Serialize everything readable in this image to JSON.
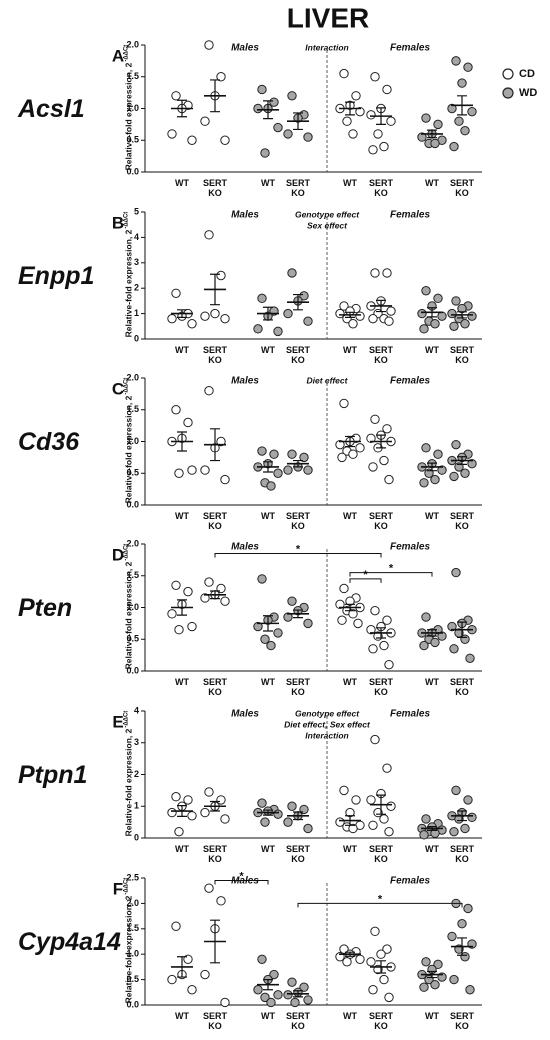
{
  "title": "LIVER",
  "legend": [
    {
      "name": "CD",
      "color": "#ffffff"
    },
    {
      "name": "WD",
      "color": "#a6a6a6"
    }
  ],
  "chart_data": [
    {
      "type": "dot",
      "letter": "A",
      "gene": "Acsl1",
      "ylabel": "Relative-fold expression, 2",
      "ylabel_sup": "-ΔΔCt",
      "sexes": [
        "Males",
        "Females"
      ],
      "annotations": [
        "Interaction"
      ],
      "ylim": [
        0,
        2
      ],
      "yticks": [
        {
          "value": 0,
          "label": "0.0"
        },
        0.5,
        {
          "value": 1,
          "label": "1.0"
        },
        1.5,
        {
          "value": 2,
          "label": "2.0"
        }
      ],
      "groups": [
        {
          "label": "WT",
          "series": 0,
          "values": [
            1.2,
            1.05,
            1.0,
            0.6,
            0.5
          ],
          "mean": 1.0,
          "sem": 0.13
        },
        {
          "label": "SERT KO",
          "series": 0,
          "values": [
            2.0,
            1.5,
            1.2,
            0.8,
            0.5
          ],
          "mean": 1.2,
          "sem": 0.25
        },
        {
          "label": "WT",
          "series": 1,
          "values": [
            1.3,
            1.1,
            1.0,
            1.0,
            0.7,
            0.3
          ],
          "mean": 0.98,
          "sem": 0.14
        },
        {
          "label": "SERT KO",
          "series": 1,
          "values": [
            1.2,
            0.9,
            0.85,
            0.6,
            0.55
          ],
          "mean": 0.8,
          "sem": 0.13
        },
        {
          "label": "WT",
          "series": 0,
          "values": [
            1.55,
            1.2,
            1.05,
            1.0,
            0.95,
            0.8,
            0.6
          ],
          "mean": 1.0,
          "sem": 0.1
        },
        {
          "label": "SERT KO",
          "series": 0,
          "values": [
            1.5,
            1.3,
            1.0,
            0.9,
            0.8,
            0.6,
            0.4,
            0.35
          ],
          "mean": 0.88,
          "sem": 0.13
        },
        {
          "label": "WT",
          "series": 1,
          "values": [
            0.85,
            0.75,
            0.6,
            0.55,
            0.5,
            0.45,
            0.45
          ],
          "mean": 0.6,
          "sem": 0.06
        },
        {
          "label": "SERT KO",
          "series": 1,
          "values": [
            1.75,
            1.65,
            1.4,
            1.0,
            0.95,
            0.8,
            0.65,
            0.4
          ],
          "mean": 1.05,
          "sem": 0.15
        }
      ],
      "brackets": []
    },
    {
      "type": "dot",
      "letter": "B",
      "gene": "Enpp1",
      "ylabel": "Relative-fold expression, 2",
      "ylabel_sup": "-ΔΔCt",
      "sexes": [
        "Males",
        "Females"
      ],
      "annotations": [
        "Genotype effect",
        "Sex effect"
      ],
      "ylim": [
        0,
        5
      ],
      "yticks": [
        0,
        1,
        2,
        3,
        4,
        5
      ],
      "groups": [
        {
          "label": "WT",
          "series": 0,
          "values": [
            1.8,
            1.0,
            0.9,
            0.8,
            0.6
          ],
          "mean": 1.0,
          "sem": 0.15
        },
        {
          "label": "SERT KO",
          "series": 0,
          "values": [
            4.1,
            2.5,
            1.0,
            0.9,
            0.8
          ],
          "mean": 1.95,
          "sem": 0.6
        },
        {
          "label": "WT",
          "series": 1,
          "values": [
            1.6,
            1.1,
            0.9,
            0.4,
            0.3
          ],
          "mean": 1.0,
          "sem": 0.25
        },
        {
          "label": "SERT KO",
          "series": 1,
          "values": [
            2.6,
            1.7,
            1.5,
            1.0,
            0.7
          ],
          "mean": 1.45,
          "sem": 0.3
        },
        {
          "label": "WT",
          "series": 0,
          "values": [
            1.3,
            1.2,
            1.1,
            1.0,
            0.9,
            0.8,
            0.6
          ],
          "mean": 0.95,
          "sem": 0.1
        },
        {
          "label": "SERT KO",
          "series": 0,
          "values": [
            2.6,
            2.6,
            1.5,
            1.3,
            1.1,
            1.0,
            0.8,
            0.8,
            0.7
          ],
          "mean": 1.3,
          "sem": 0.22
        },
        {
          "label": "WT",
          "series": 1,
          "values": [
            1.9,
            1.6,
            1.3,
            1.0,
            0.9,
            0.7,
            0.6,
            0.4
          ],
          "mean": 1.05,
          "sem": 0.18
        },
        {
          "label": "SERT KO",
          "series": 1,
          "values": [
            1.5,
            1.3,
            1.2,
            1.0,
            0.9,
            0.8,
            0.6,
            0.5
          ],
          "mean": 0.95,
          "sem": 0.12
        }
      ],
      "brackets": []
    },
    {
      "type": "dot",
      "letter": "C",
      "gene": "Cd36",
      "ylabel": "Relative-fold expression, 2",
      "ylabel_sup": "-ΔΔCt",
      "sexes": [
        "Males",
        "Females"
      ],
      "annotations": [
        "Diet effect"
      ],
      "ylim": [
        0,
        2
      ],
      "yticks": [
        {
          "value": 0,
          "label": "0.0"
        },
        0.5,
        {
          "value": 1,
          "label": "1.0"
        },
        1.5,
        {
          "value": 2,
          "label": "2.0"
        }
      ],
      "groups": [
        {
          "label": "WT",
          "series": 0,
          "values": [
            1.5,
            1.3,
            1.05,
            1.0,
            0.55,
            0.5
          ],
          "mean": 1.0,
          "sem": 0.15
        },
        {
          "label": "SERT KO",
          "series": 0,
          "values": [
            1.8,
            1.0,
            0.9,
            0.55,
            0.4
          ],
          "mean": 0.95,
          "sem": 0.25
        },
        {
          "label": "WT",
          "series": 1,
          "values": [
            0.85,
            0.8,
            0.65,
            0.6,
            0.5,
            0.35,
            0.3
          ],
          "mean": 0.6,
          "sem": 0.08
        },
        {
          "label": "SERT KO",
          "series": 1,
          "values": [
            0.8,
            0.75,
            0.6,
            0.55,
            0.55
          ],
          "mean": 0.65,
          "sem": 0.05
        },
        {
          "label": "WT",
          "series": 0,
          "values": [
            1.6,
            1.05,
            1.0,
            0.95,
            0.9,
            0.85,
            0.8,
            0.75
          ],
          "mean": 1.0,
          "sem": 0.08
        },
        {
          "label": "SERT KO",
          "series": 0,
          "values": [
            1.35,
            1.2,
            1.1,
            1.05,
            1.0,
            0.9,
            0.7,
            0.6,
            0.4
          ],
          "mean": 1.0,
          "sem": 0.1
        },
        {
          "label": "WT",
          "series": 1,
          "values": [
            0.9,
            0.8,
            0.65,
            0.6,
            0.55,
            0.5,
            0.4,
            0.35
          ],
          "mean": 0.6,
          "sem": 0.06
        },
        {
          "label": "SERT KO",
          "series": 1,
          "values": [
            0.95,
            0.8,
            0.75,
            0.7,
            0.65,
            0.6,
            0.5,
            0.45
          ],
          "mean": 0.7,
          "sem": 0.06
        }
      ],
      "brackets": []
    },
    {
      "type": "dot",
      "letter": "D",
      "gene": "Pten",
      "ylabel": "Relative-fold expression, 2",
      "ylabel_sup": "-ΔΔCt",
      "sexes": [
        "Males",
        "Females"
      ],
      "annotations": [],
      "ylim": [
        0,
        2
      ],
      "yticks": [
        {
          "value": 0,
          "label": "0.0"
        },
        0.5,
        {
          "value": 1,
          "label": "1.0"
        },
        1.5,
        {
          "value": 2,
          "label": "2.0"
        }
      ],
      "groups": [
        {
          "label": "WT",
          "series": 0,
          "values": [
            1.35,
            1.25,
            1.05,
            0.9,
            0.7,
            0.65
          ],
          "mean": 1.0,
          "sem": 0.12
        },
        {
          "label": "SERT KO",
          "series": 0,
          "values": [
            1.4,
            1.3,
            1.2,
            1.15,
            1.1
          ],
          "mean": 1.2,
          "sem": 0.06
        },
        {
          "label": "WT",
          "series": 1,
          "values": [
            1.45,
            0.85,
            0.8,
            0.7,
            0.6,
            0.5,
            0.4
          ],
          "mean": 0.75,
          "sem": 0.12
        },
        {
          "label": "SERT KO",
          "series": 1,
          "values": [
            1.1,
            1.0,
            0.95,
            0.85,
            0.75
          ],
          "mean": 0.9,
          "sem": 0.06
        },
        {
          "label": "WT",
          "series": 0,
          "values": [
            1.3,
            1.15,
            1.1,
            1.05,
            1.0,
            0.95,
            0.9,
            0.8,
            0.75
          ],
          "mean": 1.0,
          "sem": 0.05
        },
        {
          "label": "SERT KO",
          "series": 0,
          "values": [
            0.95,
            0.8,
            0.7,
            0.65,
            0.6,
            0.55,
            0.4,
            0.35,
            0.1
          ],
          "mean": 0.6,
          "sem": 0.08
        },
        {
          "label": "WT",
          "series": 1,
          "values": [
            0.85,
            0.65,
            0.6,
            0.6,
            0.55,
            0.5,
            0.45,
            0.4
          ],
          "mean": 0.6,
          "sem": 0.05
        },
        {
          "label": "SERT KO",
          "series": 1,
          "values": [
            1.55,
            0.8,
            0.75,
            0.7,
            0.65,
            0.6,
            0.5,
            0.35,
            0.2
          ],
          "mean": 0.65,
          "sem": 0.12
        }
      ],
      "brackets": [
        {
          "from": 1,
          "to": 5,
          "y": 1.85,
          "label": "*"
        },
        {
          "from": 4,
          "to": 5,
          "y": 1.45,
          "label": "*"
        },
        {
          "from": 4,
          "to": 6,
          "y": 1.55,
          "label": "*"
        }
      ]
    },
    {
      "type": "dot",
      "letter": "E",
      "gene": "Ptpn1",
      "ylabel": "Relative-fold expression, 2",
      "ylabel_sup": "-ΔΔCt",
      "sexes": [
        "Males",
        "Females"
      ],
      "annotations": [
        "Genotype effect",
        "Diet effect, Sex effect",
        "Interaction"
      ],
      "ylim": [
        0,
        4
      ],
      "yticks": [
        0,
        1,
        2,
        3,
        4
      ],
      "groups": [
        {
          "label": "WT",
          "series": 0,
          "values": [
            1.3,
            1.2,
            1.0,
            0.8,
            0.7,
            0.2
          ],
          "mean": 0.85,
          "sem": 0.17
        },
        {
          "label": "SERT KO",
          "series": 0,
          "values": [
            1.45,
            1.2,
            1.0,
            0.8,
            0.6
          ],
          "mean": 1.0,
          "sem": 0.15
        },
        {
          "label": "WT",
          "series": 1,
          "values": [
            1.1,
            0.9,
            0.85,
            0.8,
            0.75,
            0.5
          ],
          "mean": 0.8,
          "sem": 0.08
        },
        {
          "label": "SERT KO",
          "series": 1,
          "values": [
            1.0,
            0.9,
            0.7,
            0.5,
            0.3
          ],
          "mean": 0.7,
          "sem": 0.12
        },
        {
          "label": "WT",
          "series": 0,
          "values": [
            1.5,
            1.2,
            0.8,
            0.5,
            0.4,
            0.35,
            0.3
          ],
          "mean": 0.55,
          "sem": 0.15
        },
        {
          "label": "SERT KO",
          "series": 0,
          "values": [
            3.1,
            2.2,
            1.4,
            1.2,
            1.0,
            0.8,
            0.6,
            0.4,
            0.2
          ],
          "mean": 1.05,
          "sem": 0.3
        },
        {
          "label": "WT",
          "series": 1,
          "values": [
            0.6,
            0.45,
            0.35,
            0.3,
            0.25,
            0.2,
            0.15,
            0.1
          ],
          "mean": 0.3,
          "sem": 0.06
        },
        {
          "label": "SERT KO",
          "series": 1,
          "values": [
            1.5,
            1.2,
            0.8,
            0.7,
            0.65,
            0.6,
            0.3,
            0.2
          ],
          "mean": 0.7,
          "sem": 0.15
        }
      ],
      "brackets": []
    },
    {
      "type": "dot",
      "letter": "F",
      "gene": "Cyp4a14",
      "ylabel": "Relative-fold expression, 2",
      "ylabel_sup": "-ΔΔCt",
      "sexes": [
        "Males",
        "Females"
      ],
      "annotations": [],
      "ylim": [
        0,
        2.5
      ],
      "yticks": [
        {
          "value": 0,
          "label": "0.0"
        },
        0.5,
        {
          "value": 1,
          "label": "1.0"
        },
        1.5,
        {
          "value": 2,
          "label": "2.0"
        },
        2.5
      ],
      "groups": [
        {
          "label": "WT",
          "series": 0,
          "values": [
            1.55,
            0.9,
            0.6,
            0.5,
            0.3
          ],
          "mean": 0.75,
          "sem": 0.2
        },
        {
          "label": "SERT KO",
          "series": 0,
          "values": [
            2.3,
            2.05,
            1.5,
            0.6,
            0.05
          ],
          "mean": 1.25,
          "sem": 0.42
        },
        {
          "label": "WT",
          "series": 1,
          "values": [
            0.9,
            0.6,
            0.5,
            0.3,
            0.2,
            0.15,
            0.05
          ],
          "mean": 0.4,
          "sem": 0.1
        },
        {
          "label": "SERT KO",
          "series": 1,
          "values": [
            0.45,
            0.35,
            0.25,
            0.2,
            0.1,
            0.05
          ],
          "mean": 0.22,
          "sem": 0.06
        },
        {
          "label": "WT",
          "series": 0,
          "values": [
            1.1,
            1.05,
            1.0,
            0.95,
            0.9,
            0.85
          ],
          "mean": 1.0,
          "sem": 0.04
        },
        {
          "label": "SERT KO",
          "series": 0,
          "values": [
            1.45,
            1.1,
            1.0,
            0.85,
            0.75,
            0.7,
            0.5,
            0.3,
            0.15
          ],
          "mean": 0.75,
          "sem": 0.12
        },
        {
          "label": "WT",
          "series": 1,
          "values": [
            0.85,
            0.8,
            0.7,
            0.6,
            0.55,
            0.5,
            0.4,
            0.35
          ],
          "mean": 0.6,
          "sem": 0.06
        },
        {
          "label": "SERT KO",
          "series": 1,
          "values": [
            2.0,
            1.9,
            1.6,
            1.35,
            1.2,
            1.1,
            0.95,
            0.5,
            0.3
          ],
          "mean": 1.15,
          "sem": 0.17
        }
      ],
      "brackets": [
        {
          "from": 1,
          "to": 2,
          "y": 2.45,
          "label": "*"
        },
        {
          "from": 3,
          "to": 7,
          "y": 2.0,
          "label": "*"
        }
      ]
    }
  ]
}
